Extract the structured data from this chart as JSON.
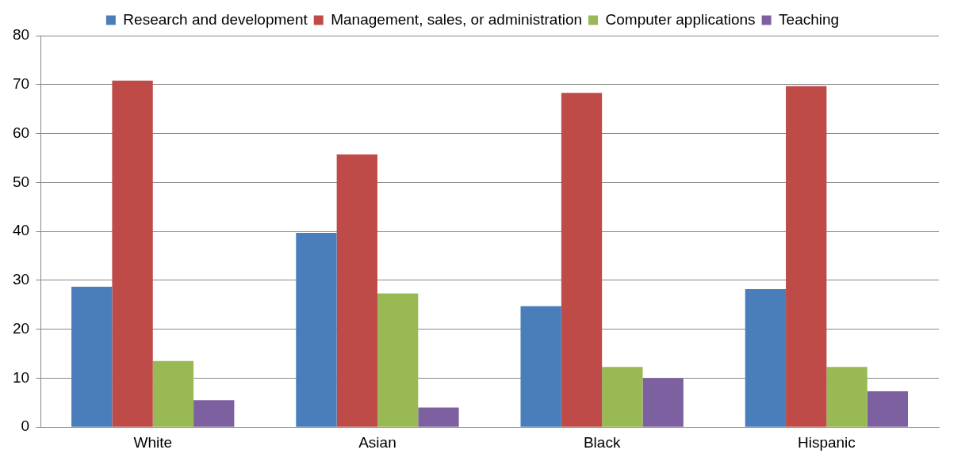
{
  "chart_data": {
    "type": "bar",
    "categories": [
      "White",
      "Asian",
      "Black",
      "Hispanic"
    ],
    "series": [
      {
        "name": "Research and development",
        "color": "#4a7ebb",
        "values": [
          28.7,
          39.7,
          24.7,
          28.2
        ]
      },
      {
        "name": "Management, sales, or administration",
        "color": "#be4b48",
        "values": [
          70.8,
          55.7,
          68.3,
          69.7
        ]
      },
      {
        "name": "Computer applications",
        "color": "#98b954",
        "values": [
          13.5,
          27.3,
          12.3,
          12.3
        ]
      },
      {
        "name": "Teaching",
        "color": "#7d60a0",
        "values": [
          5.5,
          4.0,
          10.0,
          7.3
        ]
      }
    ],
    "ylim": [
      0,
      80
    ],
    "yticks": [
      0,
      10,
      20,
      30,
      40,
      50,
      60,
      70,
      80
    ],
    "grid": "y",
    "legend": "top"
  }
}
